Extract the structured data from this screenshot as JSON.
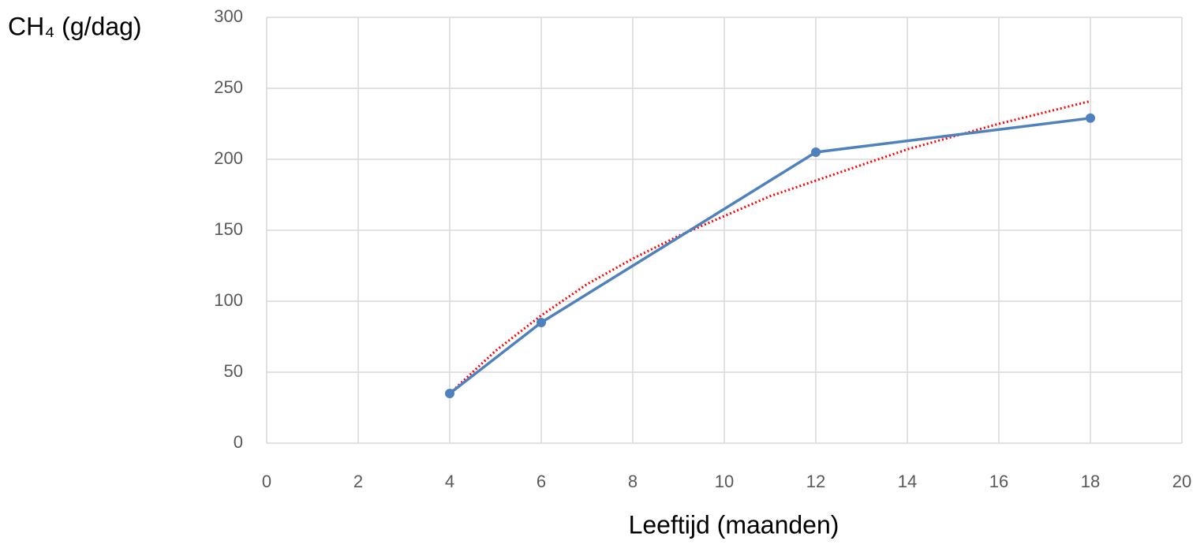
{
  "chart_data": {
    "type": "line",
    "y_label": "CH₄ (g/dag)",
    "x_label": "Leeftijd (maanden)",
    "xlim": [
      0,
      20
    ],
    "xticks": [
      0,
      2,
      4,
      6,
      8,
      10,
      12,
      14,
      16,
      18,
      20
    ],
    "ylim": [
      0,
      300
    ],
    "yticks": [
      0,
      50,
      100,
      150,
      200,
      250,
      300
    ],
    "grid": true,
    "series": [
      {
        "color": "#4f81bd",
        "line_style": "solid",
        "markers": true,
        "x": [
          4,
          6,
          12,
          18
        ],
        "values": [
          35,
          85,
          205,
          229
        ]
      },
      {
        "color": "#ff0000",
        "line_style": "dotted",
        "markers": false,
        "x": [
          4,
          5,
          6,
          7,
          8,
          9,
          10,
          11,
          12,
          13,
          14,
          15,
          16,
          17,
          18
        ],
        "values": [
          35,
          65,
          90,
          112,
          130,
          146,
          160,
          174,
          185,
          196,
          207,
          216,
          225,
          233,
          241
        ]
      }
    ]
  }
}
